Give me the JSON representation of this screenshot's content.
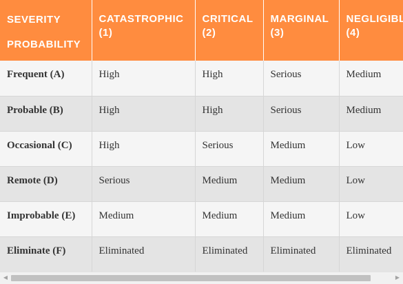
{
  "header": {
    "corner": {
      "line1": "SEVERITY",
      "line2": "PROBABILITY"
    },
    "columns": [
      {
        "line1": "CATASTROPHIC",
        "line2": "(1)"
      },
      {
        "line1": "CRITICAL",
        "line2": "(2)"
      },
      {
        "line1": "MARGINAL",
        "line2": "(3)"
      },
      {
        "line1": "NEGLIGIBLE",
        "line2": "(4)"
      }
    ]
  },
  "rows": [
    {
      "label": "Frequent (A)",
      "cells": [
        "High",
        "High",
        "Serious",
        "Medium"
      ]
    },
    {
      "label": "Probable (B)",
      "cells": [
        "High",
        "High",
        "Serious",
        "Medium"
      ]
    },
    {
      "label": "Occasional (C)",
      "cells": [
        "High",
        "Serious",
        "Medium",
        "Low"
      ]
    },
    {
      "label": "Remote (D)",
      "cells": [
        "Serious",
        "Medium",
        "Medium",
        "Low"
      ]
    },
    {
      "label": "Improbable (E)",
      "cells": [
        "Medium",
        "Medium",
        "Medium",
        "Low"
      ]
    },
    {
      "label": "Eliminate (F)",
      "cells": [
        "Eliminated",
        "Eliminated",
        "Eliminated",
        "Eliminated"
      ]
    }
  ],
  "scrollbar": {
    "left_arrow_icon": "triangle-left-icon",
    "right_arrow_icon": "triangle-right-icon"
  },
  "colors": {
    "header_bg": "#ff8c3f",
    "header_text": "#ffffff",
    "row_odd": "#f5f5f5",
    "row_even": "#e4e4e4"
  }
}
